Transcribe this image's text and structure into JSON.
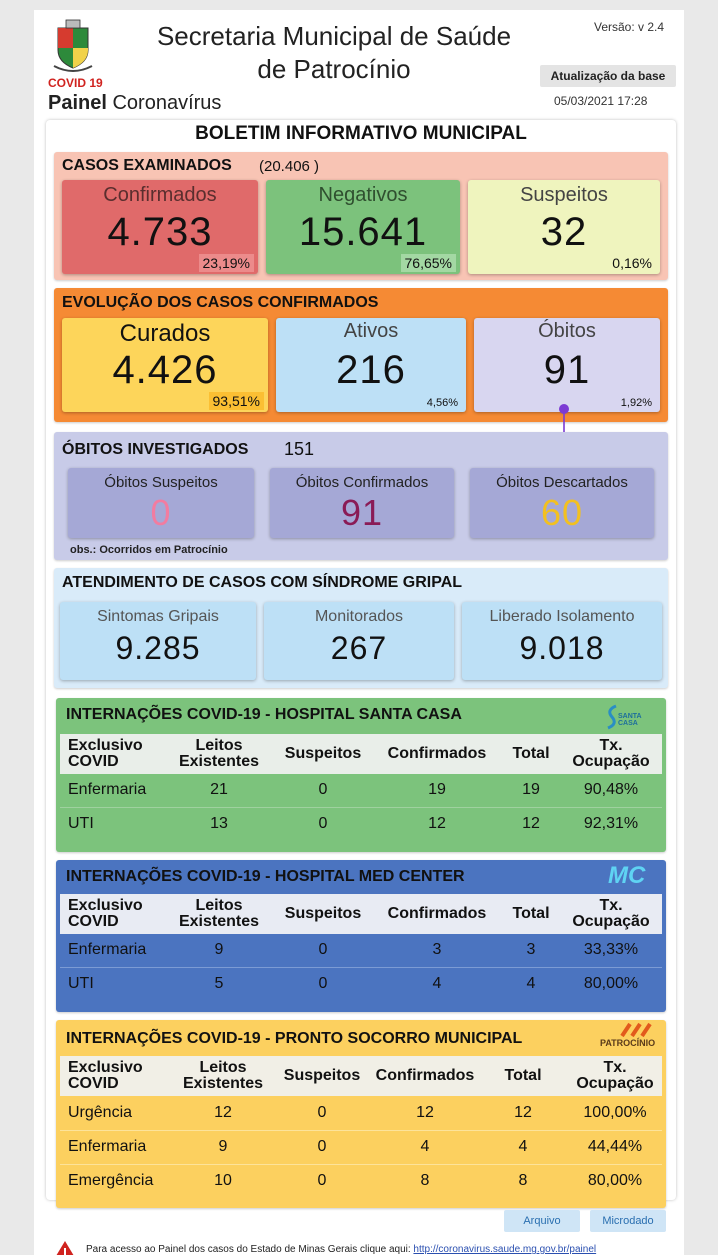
{
  "header": {
    "title": "Secretaria Municipal de Saúde de Patrocínio",
    "covid_label": "COVID 19",
    "painel_bold": "Painel",
    "painel_text": "Coronavírus",
    "version": "Versão: v 2.4",
    "update_button": "Atualização da base",
    "update_date": "05/03/2021 17:28"
  },
  "bulletin_title": "BOLETIM INFORMATIVO MUNICIPAL",
  "casos": {
    "title": "CASOS EXAMINADOS",
    "total": "(20.406 )",
    "confirmados": {
      "label": "Confirmados",
      "value": "4.733",
      "pct": "23,19%"
    },
    "negativos": {
      "label": "Negativos",
      "value": "15.641",
      "pct": "76,65%"
    },
    "suspeitos": {
      "label": "Suspeitos",
      "value": "32",
      "pct": "0,16%"
    }
  },
  "evolucao": {
    "title": "EVOLUÇÃO DOS CASOS CONFIRMADOS",
    "curados": {
      "label": "Curados",
      "value": "4.426",
      "pct": "93,51%"
    },
    "ativos": {
      "label": "Ativos",
      "value": "216",
      "pct": "4,56%"
    },
    "obitos": {
      "label": "Óbitos",
      "value": "91",
      "pct": "1,92%"
    }
  },
  "obitos_inv": {
    "title": "ÓBITOS INVESTIGADOS",
    "total": "151",
    "suspeitos": {
      "label": "Óbitos Suspeitos",
      "value": "0"
    },
    "confirmados": {
      "label": "Óbitos Confirmados",
      "value": "91"
    },
    "descartados": {
      "label": "Óbitos Descartados",
      "value": "60"
    },
    "obs": "obs.: Ocorridos em Patrocínio"
  },
  "atendimento": {
    "title": "ATENDIMENTO DE CASOS COM SÍNDROME GRIPAL",
    "sintomas": {
      "label": "Sintomas Gripais",
      "value": "9.285"
    },
    "monitorados": {
      "label": "Monitorados",
      "value": "267"
    },
    "liberado": {
      "label": "Liberado Isolamento",
      "value": "9.018"
    }
  },
  "table_headers": {
    "col1_l1": "Exclusivo",
    "col1_l2": "COVID",
    "col2_l1": "Leitos",
    "col2_l2": "Existentes",
    "col3": "Suspeitos",
    "col4": "Confirmados",
    "col5": "Total",
    "col6_l1": "Tx.",
    "col6_l2": "Ocupação"
  },
  "santa_casa": {
    "title": "INTERNAÇÕES COVID-19 - HOSPITAL SANTA CASA",
    "logo_text": "SANTA CASA",
    "rows": [
      {
        "name": "Enfermaria",
        "leitos": "21",
        "suspeitos": "0",
        "confirmados": "19",
        "total": "19",
        "taxa": "90,48%"
      },
      {
        "name": "UTI",
        "leitos": "13",
        "suspeitos": "0",
        "confirmados": "12",
        "total": "12",
        "taxa": "92,31%"
      }
    ]
  },
  "med_center": {
    "title": "INTERNAÇÕES COVID-19 - HOSPITAL MED CENTER",
    "logo_text": "MC",
    "rows": [
      {
        "name": "Enfermaria",
        "leitos": "9",
        "suspeitos": "0",
        "confirmados": "3",
        "total": "3",
        "taxa": "33,33%"
      },
      {
        "name": "UTI",
        "leitos": "5",
        "suspeitos": "0",
        "confirmados": "4",
        "total": "4",
        "taxa": "80,00%"
      }
    ]
  },
  "pronto_socorro": {
    "title": "INTERNAÇÕES COVID-19 - PRONTO SOCORRO MUNICIPAL",
    "logo_text": "PATROCÍNIO",
    "rows": [
      {
        "name": "Urgência",
        "leitos": "12",
        "suspeitos": "0",
        "confirmados": "12",
        "total": "12",
        "taxa": "100,00%"
      },
      {
        "name": "Enfermaria",
        "leitos": "9",
        "suspeitos": "0",
        "confirmados": "4",
        "total": "4",
        "taxa": "44,44%"
      },
      {
        "name": "Emergência",
        "leitos": "10",
        "suspeitos": "0",
        "confirmados": "8",
        "total": "8",
        "taxa": "80,00%"
      }
    ]
  },
  "footer": {
    "arquivo": "Arquivo",
    "microdado": "Microdado",
    "note_text": "Para acesso ao Painel dos casos do Estado de Minas Gerais clique aqui:",
    "note_link": "http://coronavirus.saude.mg.gov.br/painel"
  },
  "colors": {
    "confirmados": "#e36e6e",
    "negativos": "#7dc47d",
    "suspeitos": "#eff4bf",
    "curados": "#fdd55a",
    "ativos": "#bde0f6",
    "obitos": "#d8d6f0",
    "obitos_section": "#c9cce9",
    "santa_casa": "#7cc37c",
    "med_center": "#4b74c0",
    "pronto_socorro": "#fcd05f",
    "arrow": "#7c3bd4"
  }
}
